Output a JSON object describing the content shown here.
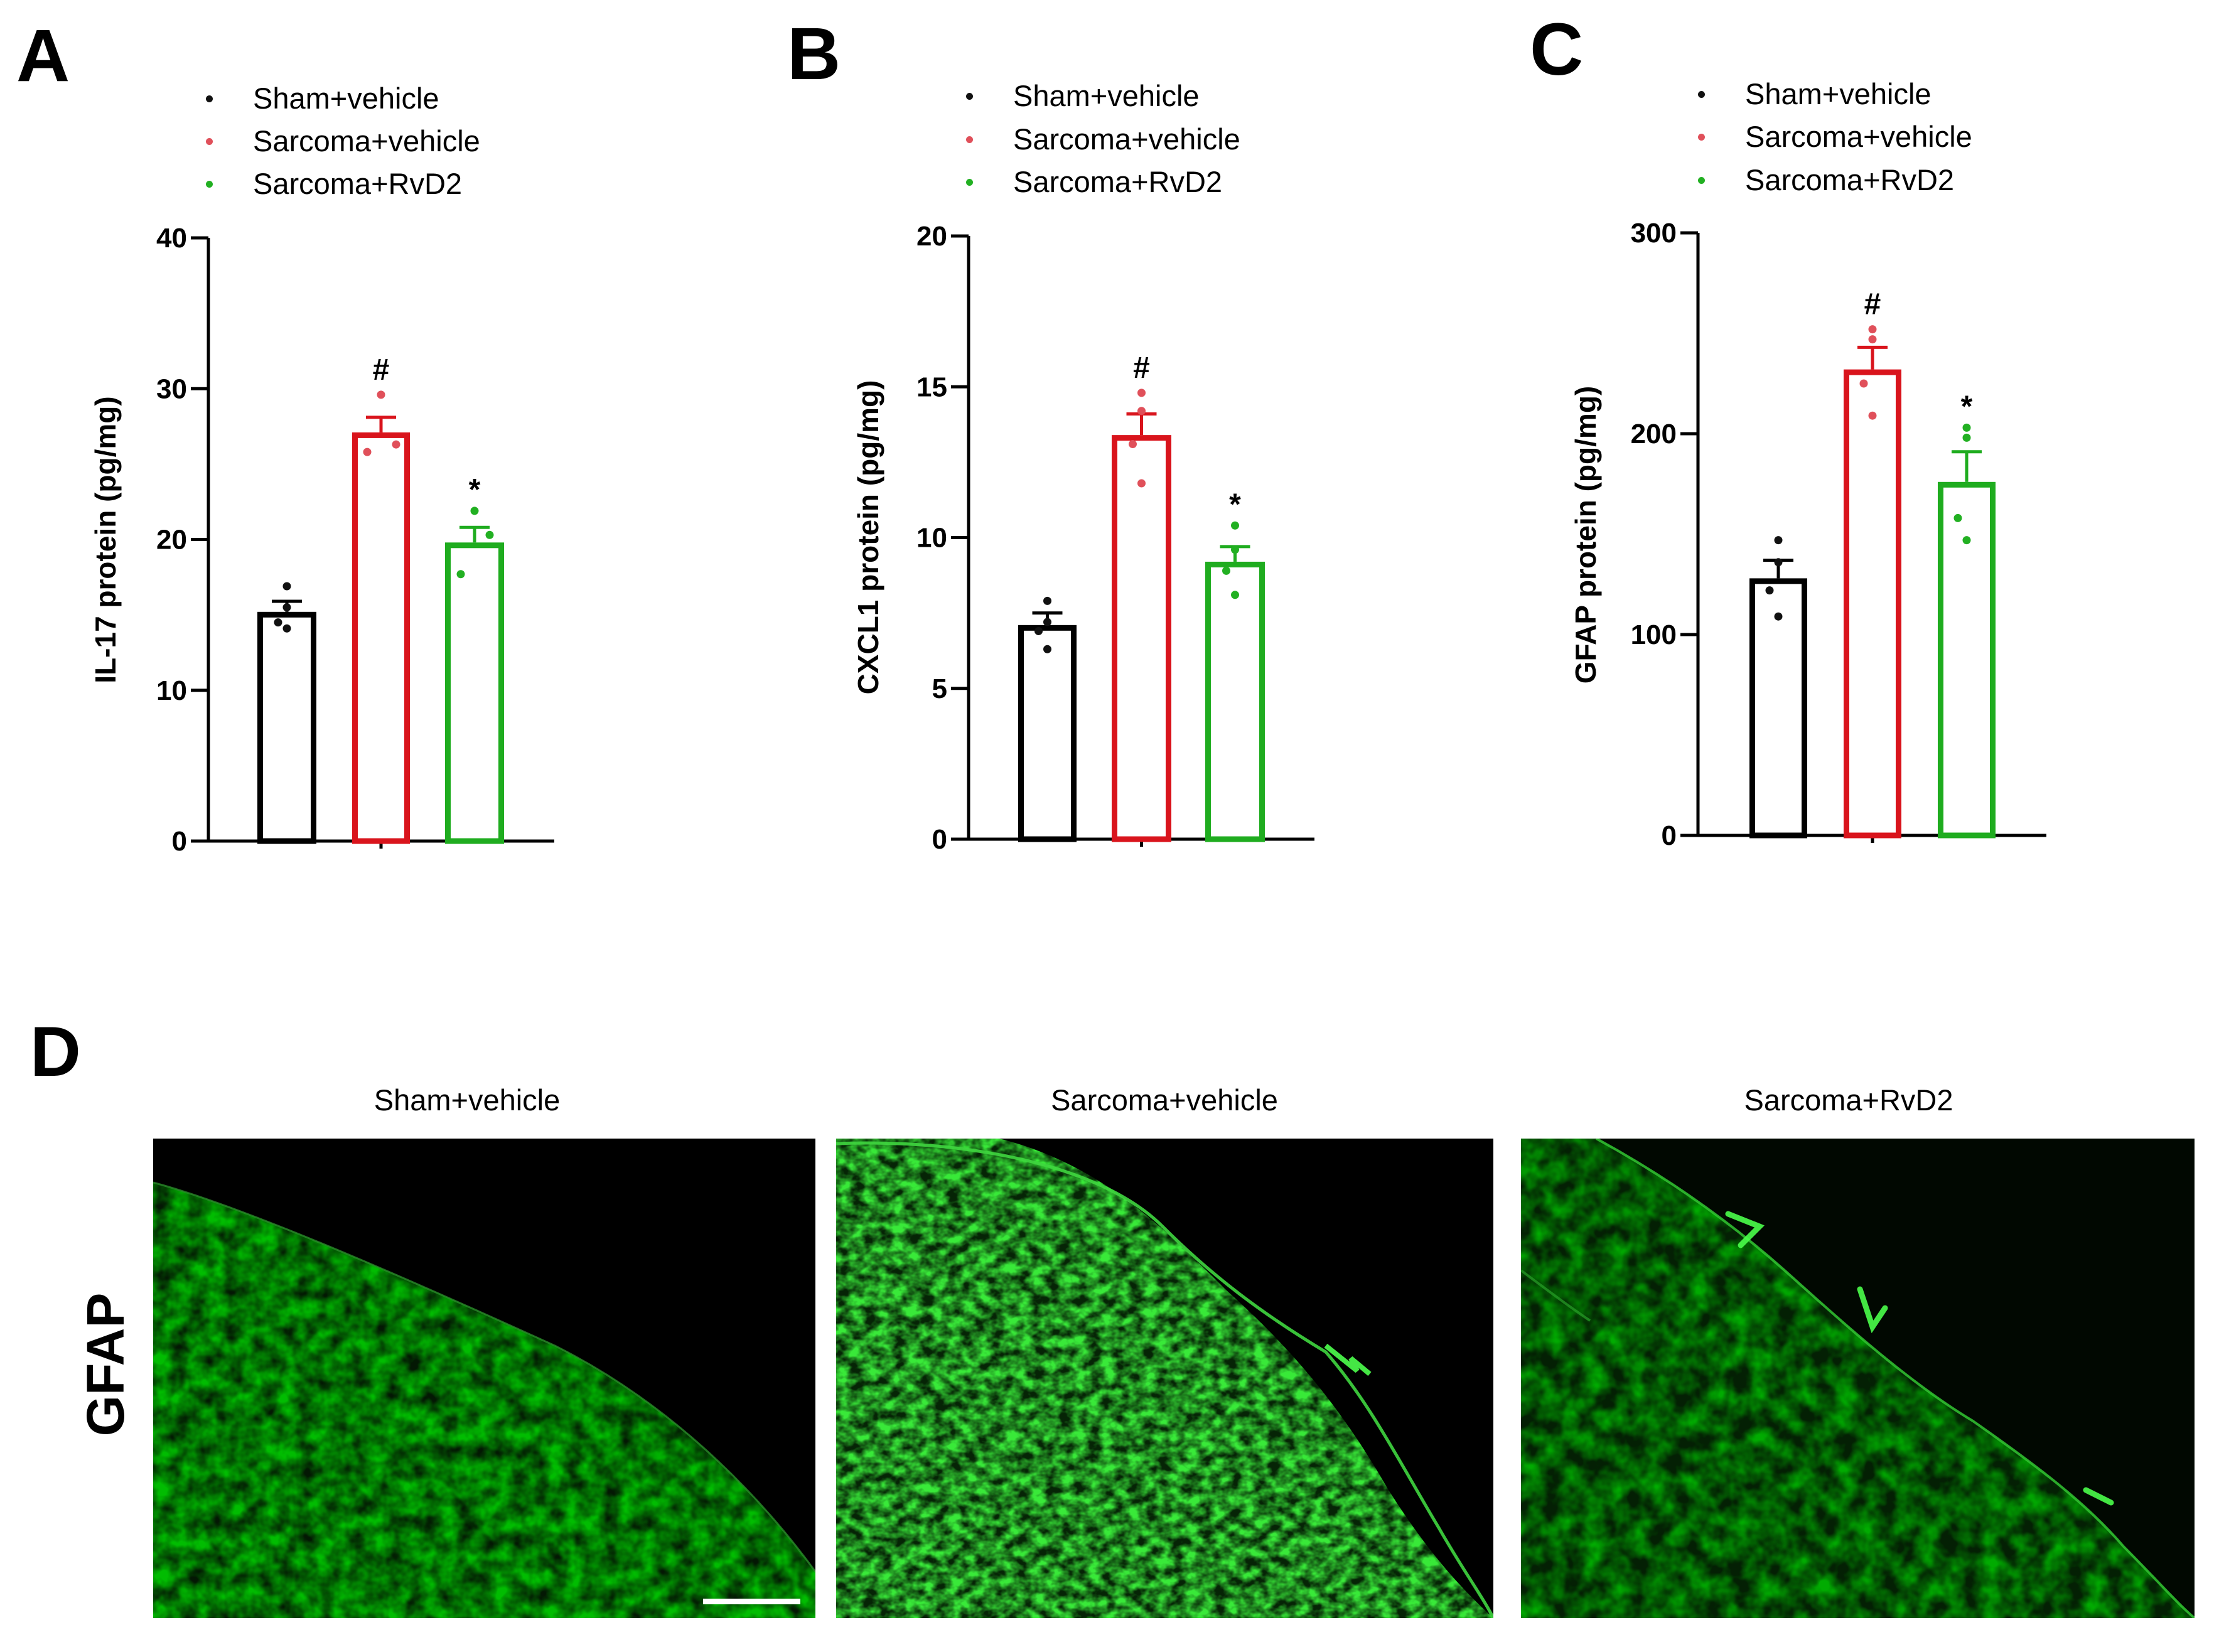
{
  "legend": [
    {
      "label": "Sham+vehicle",
      "color": "#111111"
    },
    {
      "label": "Sarcoma+vehicle",
      "color": "#e0505a"
    },
    {
      "label": "Sarcoma+RvD2",
      "color": "#22b022"
    }
  ],
  "panels": {
    "A": {
      "letter": "A"
    },
    "B": {
      "letter": "B"
    },
    "C": {
      "letter": "C"
    },
    "D": {
      "letter": "D",
      "row_label": "GFAP",
      "titles": [
        "Sham+vehicle",
        "Sarcoma+vehicle",
        "Sarcoma+RvD2"
      ],
      "scale_bar": true
    }
  },
  "colors": {
    "sham": "#000000",
    "sarcoma_vehicle": "#d9141c",
    "sarcoma_rvd2": "#1fac1f",
    "sham_dots": "#111111",
    "sarcoma_vehicle_dots": "#e0505a",
    "sarcoma_rvd2_dots": "#22b022",
    "fluorescence": "#39ff39"
  },
  "chart_data": [
    {
      "panel": "A",
      "type": "bar",
      "title": "",
      "xlabel": "",
      "ylabel": "IL-17 protein (pg/mg)",
      "ylim": [
        0,
        40
      ],
      "yticks": [
        0,
        10,
        20,
        30,
        40
      ],
      "grid": false,
      "legend_position": "top",
      "categories": [
        "Sham+vehicle",
        "Sarcoma+vehicle",
        "Sarcoma+RvD2"
      ],
      "values": [
        15.2,
        27.1,
        19.8
      ],
      "sem": [
        0.7,
        1.0,
        1.0
      ],
      "points": [
        [
          16.9,
          15.5,
          14.5,
          14.1
        ],
        [
          29.6,
          26.3,
          25.8
        ],
        [
          21.9,
          20.3,
          17.7
        ]
      ],
      "annotations": [
        "",
        "#",
        "*"
      ]
    },
    {
      "panel": "B",
      "type": "bar",
      "title": "",
      "xlabel": "",
      "ylabel": "CXCL1 protein (pg/mg)",
      "ylim": [
        0,
        20
      ],
      "yticks": [
        0,
        5,
        10,
        15,
        20
      ],
      "grid": false,
      "legend_position": "top",
      "categories": [
        "Sham+vehicle",
        "Sarcoma+vehicle",
        "Sarcoma+RvD2"
      ],
      "values": [
        7.1,
        13.4,
        9.2
      ],
      "sem": [
        0.4,
        0.7,
        0.5
      ],
      "points": [
        [
          7.9,
          7.2,
          6.9,
          6.3
        ],
        [
          14.8,
          14.2,
          13.1,
          11.8
        ],
        [
          10.4,
          9.6,
          8.9,
          8.1
        ]
      ],
      "annotations": [
        "",
        "#",
        "*"
      ]
    },
    {
      "panel": "C",
      "type": "bar",
      "title": "",
      "xlabel": "",
      "ylabel": "GFAP protein (pg/mg)",
      "ylim": [
        0,
        300
      ],
      "yticks": [
        0,
        100,
        200,
        300
      ],
      "grid": false,
      "legend_position": "top",
      "categories": [
        "Sham+vehicle",
        "Sarcoma+vehicle",
        "Sarcoma+RvD2"
      ],
      "values": [
        128,
        232,
        176
      ],
      "sem": [
        9,
        11,
        15
      ],
      "points": [
        [
          147,
          136,
          122,
          109
        ],
        [
          252,
          247,
          225,
          209
        ],
        [
          203,
          198,
          158,
          147
        ]
      ],
      "annotations": [
        "",
        "#",
        "*"
      ]
    }
  ]
}
